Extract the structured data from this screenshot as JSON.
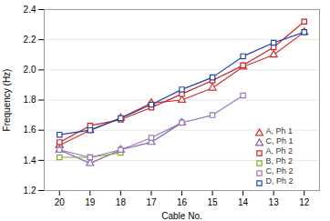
{
  "chart_data": {
    "type": "line",
    "xlabel": "Cable No.",
    "ylabel": "Frequency (Hz)",
    "x": [
      20,
      19,
      18,
      17,
      16,
      15,
      14,
      13,
      12
    ],
    "series": [
      {
        "name": "A, Ph 1",
        "color": "#cc3333",
        "marker": "triangle",
        "values": [
          1.5,
          1.6,
          1.68,
          1.78,
          1.8,
          1.88,
          2.02,
          2.1,
          2.25
        ]
      },
      {
        "name": "C, Ph 1",
        "color": "#8866aa",
        "marker": "triangle",
        "values": [
          1.47,
          1.38,
          1.47,
          1.52,
          1.65,
          null,
          null,
          null,
          null
        ]
      },
      {
        "name": "A, Ph 2",
        "color": "#cc2222",
        "marker": "square",
        "values": [
          1.52,
          1.63,
          1.67,
          1.75,
          1.84,
          1.93,
          2.03,
          2.15,
          2.32
        ]
      },
      {
        "name": "B, Ph 2",
        "color": "#88aa33",
        "marker": "square",
        "values": [
          1.42,
          1.42,
          1.45,
          null,
          null,
          null,
          null,
          null,
          null
        ]
      },
      {
        "name": "C, Ph 2",
        "color": "#9977bb",
        "marker": "square",
        "values": [
          1.47,
          1.42,
          1.47,
          1.55,
          1.65,
          1.7,
          1.83,
          null,
          null
        ]
      },
      {
        "name": "D, Ph 2",
        "color": "#2244aa",
        "marker": "square",
        "values": [
          1.57,
          1.6,
          1.68,
          1.77,
          1.87,
          1.95,
          2.09,
          2.18,
          2.25
        ]
      }
    ],
    "xlim": [
      20.5,
      11.5
    ],
    "ylim": [
      1.2,
      2.4
    ],
    "xticks": [
      20,
      19,
      18,
      17,
      16,
      15,
      14,
      13,
      12
    ],
    "yticks": [
      1.2,
      1.4,
      1.6,
      1.8,
      {
        "value": 2,
        "label": "2.0"
      },
      2.2,
      2.4
    ],
    "grid": "y",
    "legend": "lower right"
  }
}
